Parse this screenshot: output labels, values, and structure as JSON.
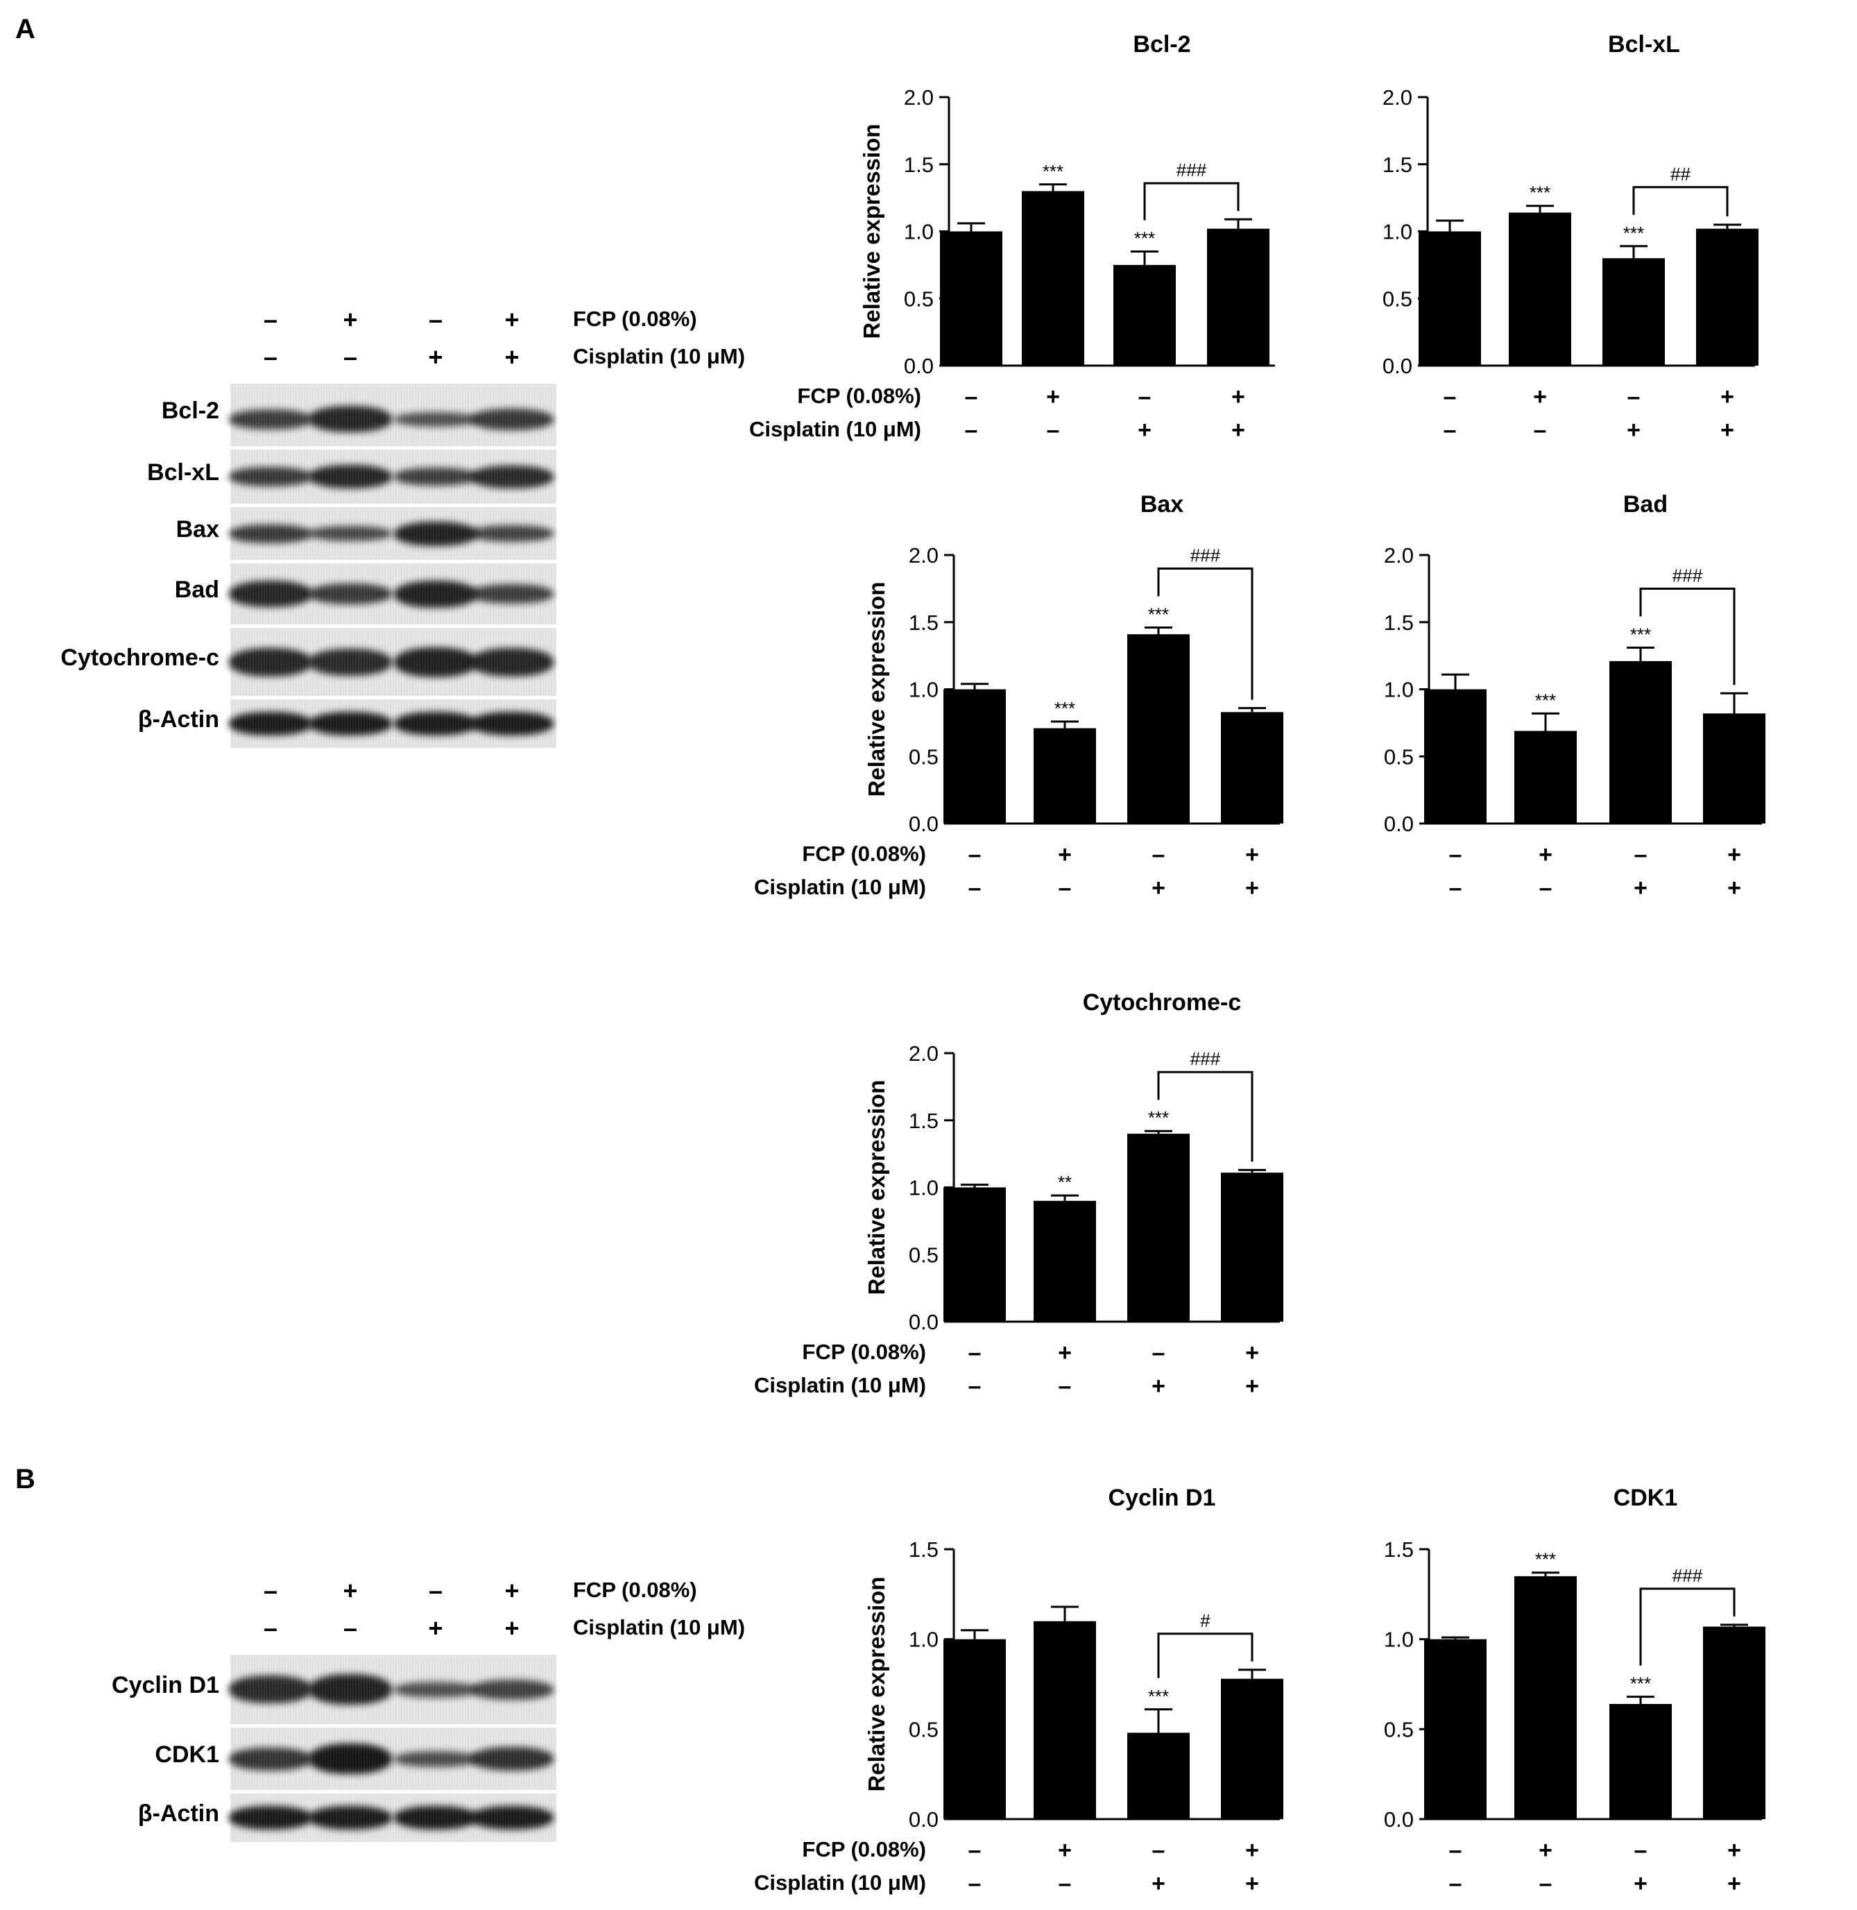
{
  "panels": {
    "a": "A",
    "b": "B"
  },
  "conditions": {
    "fcp_label": "FCP (0.08%)",
    "cisplatin_label": "Cisplatin (10 μM)",
    "fcp_signs": [
      "–",
      "+",
      "–",
      "+"
    ],
    "cisplatin_signs": [
      "–",
      "–",
      "+",
      "+"
    ]
  },
  "blot_a": {
    "labels": [
      "Bcl-2",
      "Bcl-xL",
      "Bax",
      "Bad",
      "Cytochrome-c",
      "β-Actin"
    ]
  },
  "blot_b": {
    "labels": [
      "Cyclin D1",
      "CDK1",
      "β-Actin"
    ]
  },
  "chart_data": [
    {
      "type": "bar",
      "title": "Bcl-2",
      "ylabel": "Relative expression",
      "ylim": [
        0,
        2.0
      ],
      "yticks": [
        "0.0",
        "0.5",
        "1.0",
        "1.5",
        "2.0"
      ],
      "values": [
        1.0,
        1.3,
        0.75,
        1.02
      ],
      "errors": [
        0.06,
        0.05,
        0.1,
        0.07
      ],
      "stars": [
        "",
        "***",
        "***",
        ""
      ],
      "bracket": {
        "from": 2,
        "to": 3,
        "label": "###"
      }
    },
    {
      "type": "bar",
      "title": "Bcl-xL",
      "ylabel": "",
      "ylim": [
        0,
        2.0
      ],
      "yticks": [
        "0.0",
        "0.5",
        "1.0",
        "1.5",
        "2.0"
      ],
      "values": [
        1.0,
        1.14,
        0.8,
        1.02
      ],
      "errors": [
        0.08,
        0.05,
        0.09,
        0.03
      ],
      "stars": [
        "",
        "***",
        "***",
        ""
      ],
      "bracket": {
        "from": 2,
        "to": 3,
        "label": "##"
      }
    },
    {
      "type": "bar",
      "title": "Bax",
      "ylabel": "Relative expression",
      "ylim": [
        0,
        2.0
      ],
      "yticks": [
        "0.0",
        "0.5",
        "1.0",
        "1.5",
        "2.0"
      ],
      "values": [
        1.0,
        0.71,
        1.41,
        0.83
      ],
      "errors": [
        0.04,
        0.05,
        0.05,
        0.03
      ],
      "stars": [
        "",
        "***",
        "***",
        ""
      ],
      "bracket": {
        "from": 2,
        "to": 3,
        "label": "###"
      }
    },
    {
      "type": "bar",
      "title": "Bad",
      "ylabel": "",
      "ylim": [
        0,
        2.0
      ],
      "yticks": [
        "0.0",
        "0.5",
        "1.0",
        "1.5",
        "2.0"
      ],
      "values": [
        1.0,
        0.69,
        1.21,
        0.82
      ],
      "errors": [
        0.11,
        0.13,
        0.1,
        0.15
      ],
      "stars": [
        "",
        "***",
        "***",
        ""
      ],
      "bracket": {
        "from": 2,
        "to": 3,
        "label": "###"
      }
    },
    {
      "type": "bar",
      "title": "Cytochrome-c",
      "ylabel": "Relative expression",
      "ylim": [
        0,
        2.0
      ],
      "yticks": [
        "0.0",
        "0.5",
        "1.0",
        "1.5",
        "2.0"
      ],
      "values": [
        1.0,
        0.9,
        1.4,
        1.11
      ],
      "errors": [
        0.02,
        0.04,
        0.02,
        0.02
      ],
      "stars": [
        "",
        "**",
        "***",
        ""
      ],
      "bracket": {
        "from": 2,
        "to": 3,
        "label": "###"
      }
    },
    {
      "type": "bar",
      "title": "Cyclin D1",
      "ylabel": "Relative expression",
      "ylim": [
        0,
        1.5
      ],
      "yticks": [
        "0.0",
        "0.5",
        "1.0",
        "1.5"
      ],
      "values": [
        1.0,
        1.1,
        0.48,
        0.78
      ],
      "errors": [
        0.05,
        0.08,
        0.13,
        0.05
      ],
      "stars": [
        "",
        "",
        "***",
        ""
      ],
      "bracket": {
        "from": 2,
        "to": 3,
        "label": "#"
      }
    },
    {
      "type": "bar",
      "title": "CDK1",
      "ylabel": "",
      "ylim": [
        0,
        1.5
      ],
      "yticks": [
        "0.0",
        "0.5",
        "1.0",
        "1.5"
      ],
      "values": [
        1.0,
        1.35,
        0.64,
        1.07
      ],
      "errors": [
        0.01,
        0.02,
        0.04,
        0.01
      ],
      "stars": [
        "",
        "***",
        "***",
        ""
      ],
      "bracket": {
        "from": 2,
        "to": 3,
        "label": "###"
      }
    }
  ]
}
